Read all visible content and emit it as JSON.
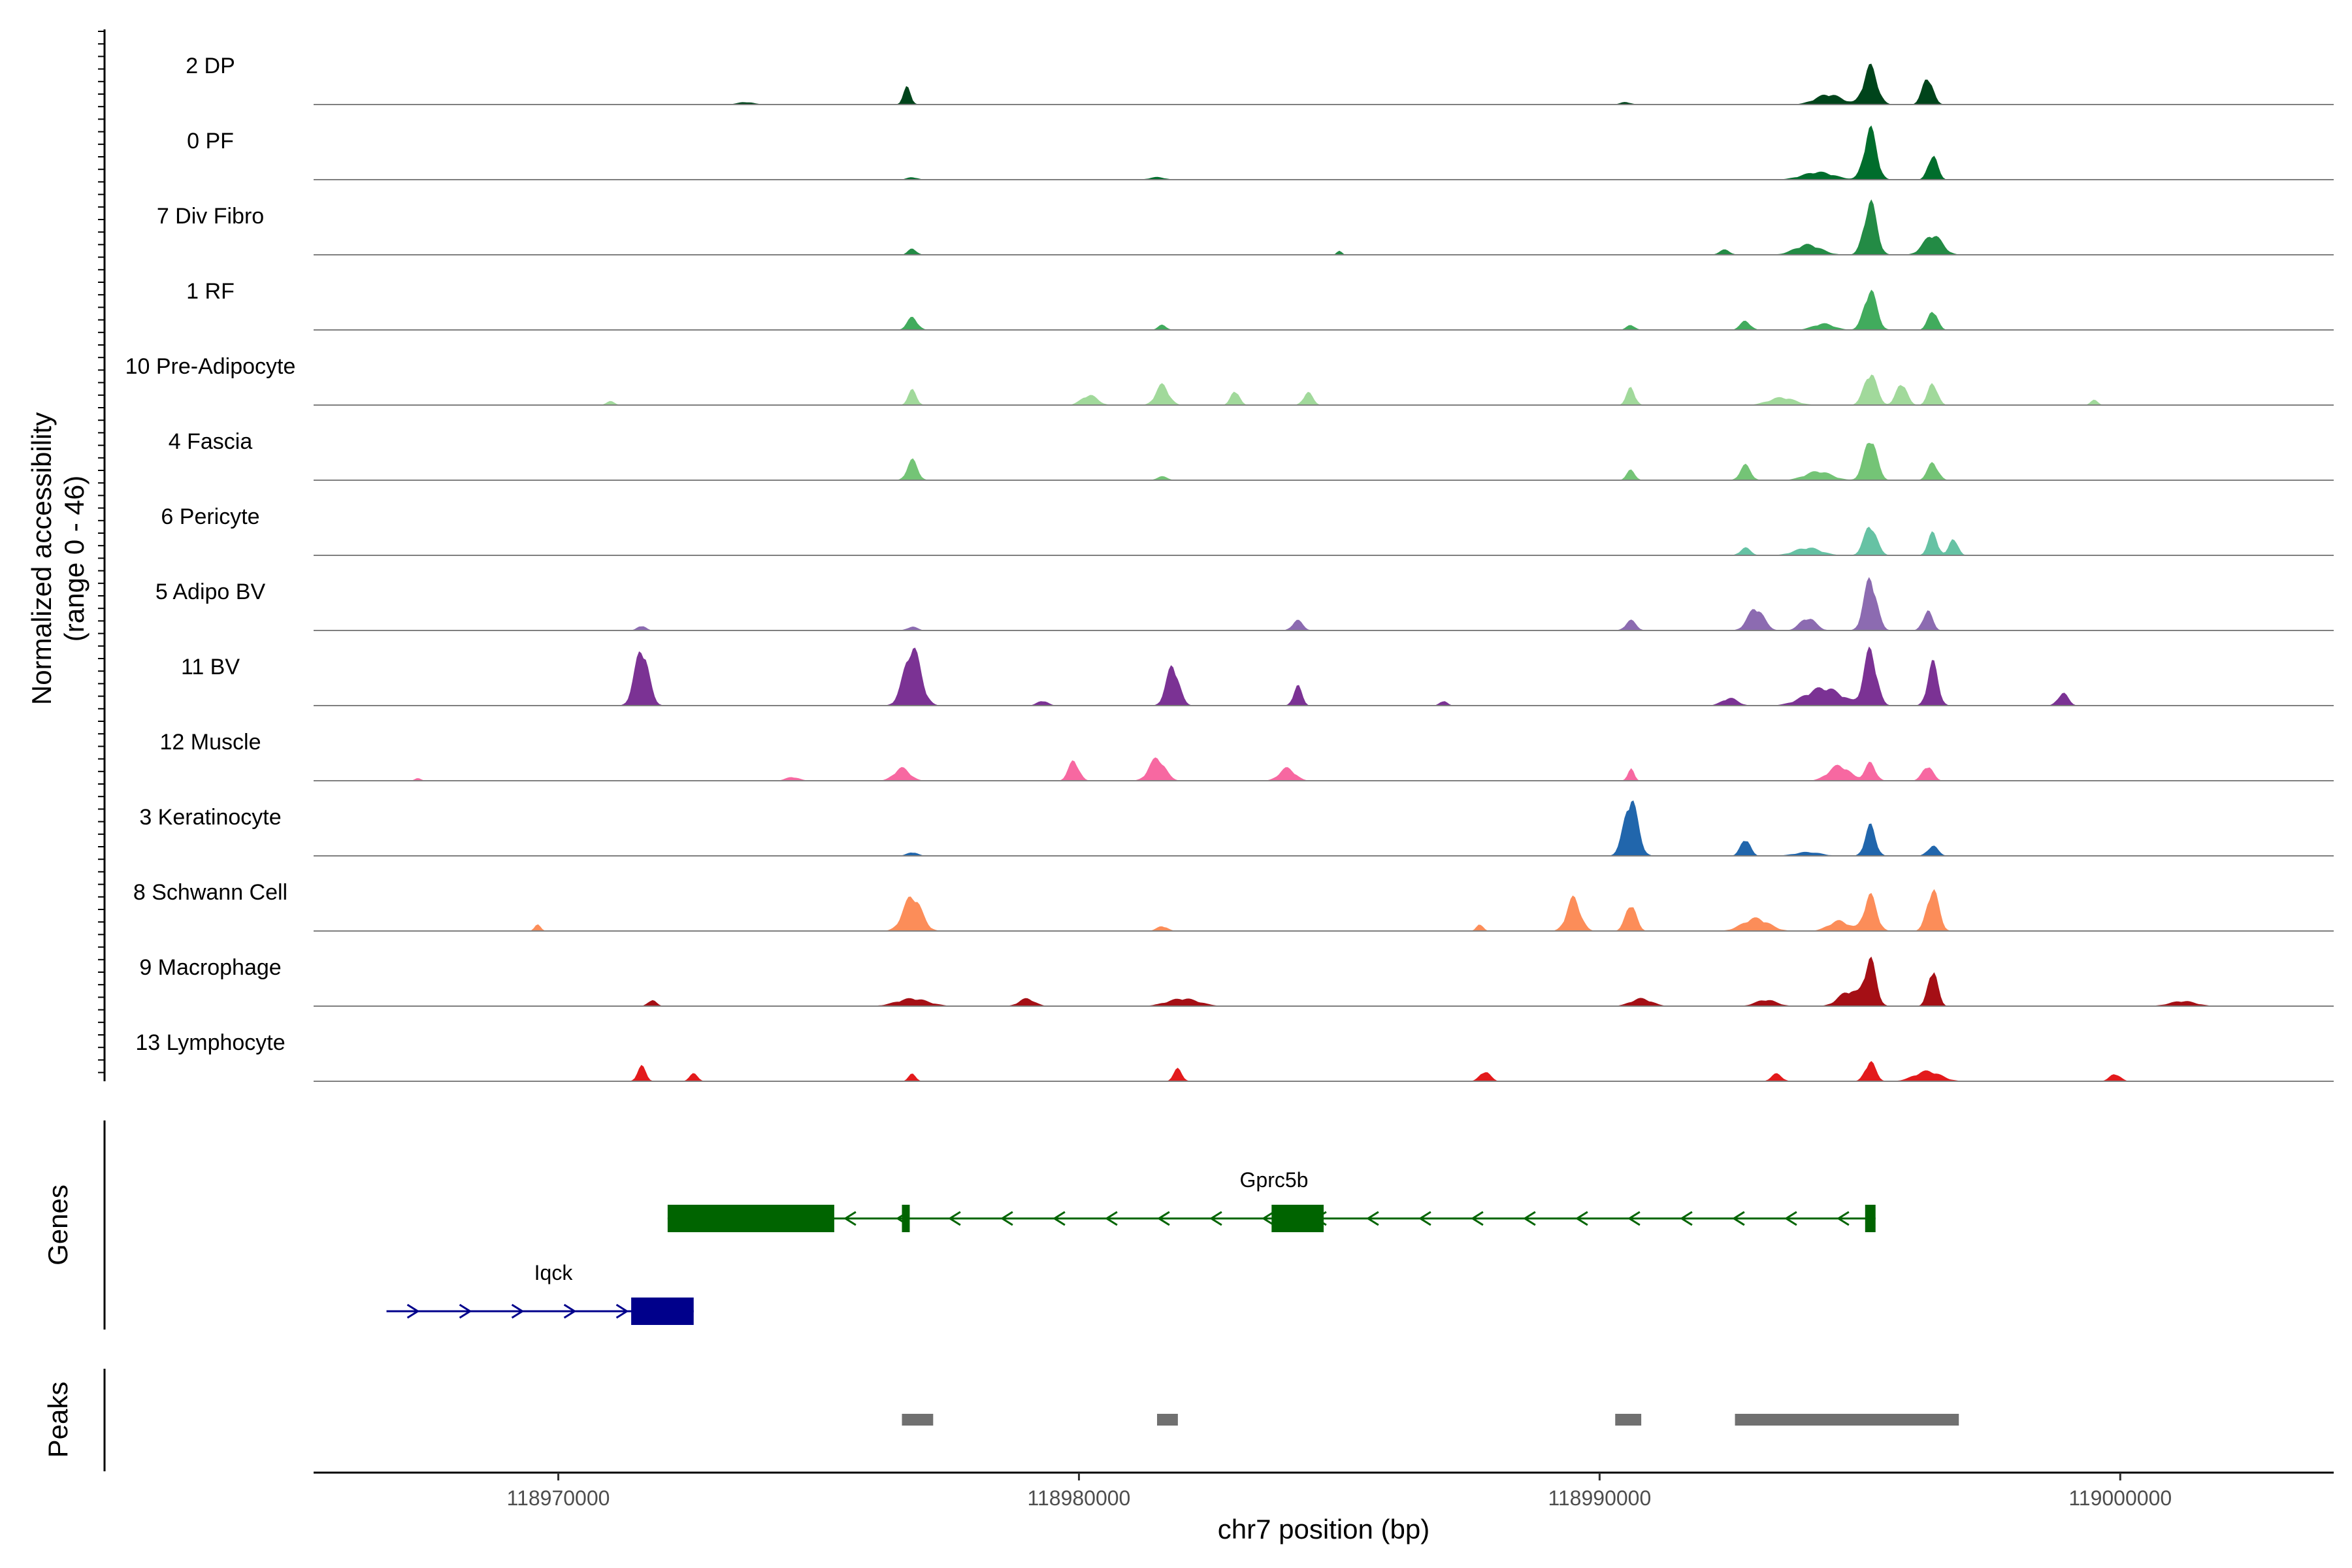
{
  "chart_data": {
    "type": "coverage",
    "chromosome": "chr7",
    "x_range": [
      118965300,
      119004100
    ],
    "y_axis_label": "Normalized accessibility",
    "y_axis_range_label": "(range 0 - 46)",
    "y_range": [
      0,
      46
    ],
    "x_axis_label": "chr7 position (bp)",
    "x_ticks": [
      118970000,
      118980000,
      118990000,
      119000000
    ],
    "x_tick_labels": [
      "118970000",
      "118980000",
      "118990000",
      "119000000"
    ],
    "tracks": [
      {
        "name": "2 DP",
        "color": "#00441b",
        "peaks": [
          [
            118976700,
            14,
            140
          ],
          [
            118994400,
            8,
            500
          ],
          [
            118995200,
            30,
            260
          ],
          [
            118996300,
            22,
            200
          ],
          [
            118973600,
            2,
            300
          ],
          [
            118990500,
            2,
            200
          ]
        ]
      },
      {
        "name": "0 PF",
        "color": "#006d2c",
        "peaks": [
          [
            118995200,
            40,
            240
          ],
          [
            118996400,
            20,
            180
          ],
          [
            118994200,
            6,
            600
          ],
          [
            118976800,
            2,
            200
          ],
          [
            118981500,
            2,
            300
          ]
        ]
      },
      {
        "name": "7 Div Fibro",
        "color": "#238b45",
        "peaks": [
          [
            118995200,
            42,
            240
          ],
          [
            118996400,
            16,
            350
          ],
          [
            118994000,
            8,
            500
          ],
          [
            118992400,
            4,
            200
          ],
          [
            118976800,
            5,
            160
          ],
          [
            118985000,
            3,
            100
          ]
        ]
      },
      {
        "name": "1 RF",
        "color": "#41ab5d",
        "peaks": [
          [
            118976800,
            10,
            200
          ],
          [
            118981600,
            4,
            160
          ],
          [
            118990600,
            4,
            160
          ],
          [
            118992800,
            7,
            200
          ],
          [
            118995200,
            32,
            240
          ],
          [
            118996400,
            16,
            180
          ],
          [
            118994300,
            5,
            400
          ]
        ]
      },
      {
        "name": "10 Pre-Adipocyte",
        "color": "#a1d99b",
        "peaks": [
          [
            118976800,
            12,
            160
          ],
          [
            118980200,
            8,
            300
          ],
          [
            118981600,
            16,
            250
          ],
          [
            118983000,
            12,
            160
          ],
          [
            118984400,
            10,
            180
          ],
          [
            118990600,
            14,
            160
          ],
          [
            118993500,
            6,
            500
          ],
          [
            118995200,
            26,
            240
          ],
          [
            118995800,
            18,
            200
          ],
          [
            118996400,
            18,
            180
          ],
          [
            118971000,
            3,
            160
          ],
          [
            118999500,
            4,
            140
          ]
        ]
      },
      {
        "name": "4 Fascia",
        "color": "#74c476",
        "peaks": [
          [
            118976800,
            16,
            200
          ],
          [
            118981600,
            3,
            200
          ],
          [
            118990600,
            8,
            160
          ],
          [
            118992800,
            12,
            200
          ],
          [
            118995200,
            34,
            240
          ],
          [
            118996400,
            14,
            200
          ],
          [
            118994200,
            7,
            500
          ]
        ]
      },
      {
        "name": "6 Pericyte",
        "color": "#66c2a4",
        "peaks": [
          [
            118995200,
            24,
            240
          ],
          [
            118996400,
            18,
            180
          ],
          [
            118996800,
            14,
            160
          ],
          [
            118994000,
            6,
            500
          ],
          [
            118992800,
            6,
            200
          ]
        ]
      },
      {
        "name": "5 Adipo BV",
        "color": "#8c6bb1",
        "peaks": [
          [
            118995200,
            42,
            240
          ],
          [
            118993000,
            18,
            300
          ],
          [
            118994000,
            10,
            300
          ],
          [
            118996300,
            16,
            180
          ],
          [
            118990600,
            8,
            200
          ],
          [
            118984200,
            8,
            200
          ],
          [
            118971600,
            4,
            160
          ],
          [
            118976800,
            3,
            200
          ]
        ]
      },
      {
        "name": "11 BV",
        "color": "#7b3294",
        "peaks": [
          [
            118971600,
            46,
            260
          ],
          [
            118976800,
            46,
            320
          ],
          [
            118981800,
            32,
            240
          ],
          [
            118984200,
            16,
            160
          ],
          [
            118995200,
            44,
            240
          ],
          [
            118996400,
            34,
            200
          ],
          [
            118994300,
            14,
            700
          ],
          [
            118998900,
            10,
            200
          ],
          [
            118992500,
            6,
            300
          ],
          [
            118987000,
            4,
            140
          ],
          [
            118979300,
            4,
            200
          ]
        ]
      },
      {
        "name": "12 Muscle",
        "color": "#f768a1",
        "peaks": [
          [
            118976600,
            10,
            300
          ],
          [
            118979900,
            16,
            200
          ],
          [
            118981500,
            18,
            300
          ],
          [
            118984000,
            10,
            300
          ],
          [
            118990600,
            10,
            120
          ],
          [
            118994600,
            12,
            400
          ],
          [
            118995200,
            14,
            200
          ],
          [
            118996300,
            12,
            200
          ],
          [
            118974500,
            3,
            250
          ],
          [
            118967300,
            2,
            120
          ]
        ]
      },
      {
        "name": "3 Keratinocyte",
        "color": "#2166ac",
        "peaks": [
          [
            118990600,
            46,
            260
          ],
          [
            118992800,
            14,
            180
          ],
          [
            118995200,
            24,
            200
          ],
          [
            118996400,
            8,
            200
          ],
          [
            118976800,
            3,
            200
          ],
          [
            118994000,
            3,
            500
          ]
        ]
      },
      {
        "name": "8 Schwann Cell",
        "color": "#fc8d59",
        "peaks": [
          [
            118976800,
            28,
            340
          ],
          [
            118989500,
            26,
            260
          ],
          [
            118990600,
            22,
            200
          ],
          [
            118993000,
            10,
            500
          ],
          [
            118994600,
            8,
            400
          ],
          [
            118995200,
            28,
            240
          ],
          [
            118996400,
            34,
            220
          ],
          [
            118981600,
            4,
            200
          ],
          [
            118987700,
            6,
            120
          ],
          [
            118969600,
            5,
            120
          ]
        ]
      },
      {
        "name": "9 Macrophage",
        "color": "#a50f15",
        "peaks": [
          [
            118995200,
            36,
            220
          ],
          [
            118996400,
            30,
            180
          ],
          [
            118994800,
            12,
            400
          ],
          [
            118976800,
            6,
            600
          ],
          [
            118979000,
            6,
            300
          ],
          [
            118982000,
            6,
            600
          ],
          [
            118990800,
            6,
            400
          ],
          [
            118993200,
            5,
            400
          ],
          [
            119001200,
            4,
            500
          ],
          [
            118971800,
            5,
            160
          ]
        ]
      },
      {
        "name": "13 Lymphocyte",
        "color": "#e31a1c",
        "peaks": [
          [
            118971600,
            12,
            160
          ],
          [
            118972600,
            6,
            160
          ],
          [
            118976800,
            6,
            140
          ],
          [
            118981900,
            10,
            160
          ],
          [
            118987800,
            8,
            200
          ],
          [
            118993400,
            6,
            200
          ],
          [
            118995200,
            16,
            200
          ],
          [
            118996300,
            8,
            500
          ],
          [
            118999900,
            6,
            200
          ]
        ]
      }
    ],
    "genes_label": "Genes",
    "genes": [
      {
        "name": "Gprc5b",
        "color": "#006400",
        "strand": "-",
        "start": 118972100,
        "end": 118995300,
        "exons": [
          [
            118972100,
            118975300
          ],
          [
            118976600,
            118976750
          ],
          [
            118983700,
            118984700
          ],
          [
            118995100,
            118995300
          ]
        ]
      },
      {
        "name": "Iqck",
        "color": "#00008b",
        "strand": "+",
        "start": 118966700,
        "end": 118972600,
        "exons": [
          [
            118971400,
            118972600
          ]
        ]
      }
    ],
    "peaks_label": "Peaks",
    "peak_color": "#707070",
    "peak_regions": [
      [
        118976600,
        118977200
      ],
      [
        118981500,
        118981900
      ],
      [
        118990300,
        118990800
      ],
      [
        118992600,
        118996900
      ]
    ]
  }
}
